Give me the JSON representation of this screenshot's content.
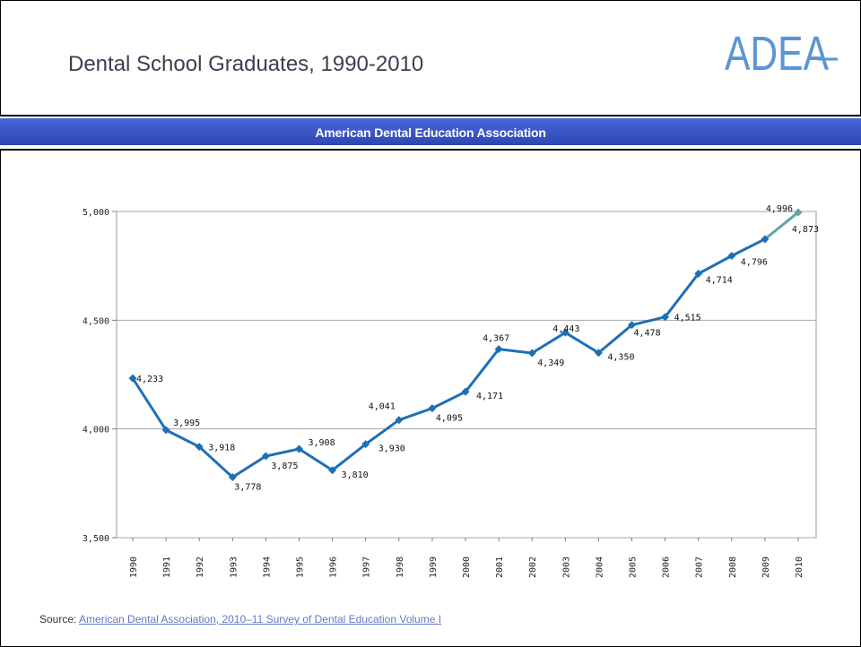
{
  "header": {
    "title": "Dental School Graduates, 1990-2010",
    "logo_text": "ADEA",
    "banner": "American Dental Education Association"
  },
  "footer": {
    "source_label": "Source: ",
    "source_link": "American Dental Association, 2010–11 Survey of Dental Education Volume I"
  },
  "colors": {
    "line": "#1f6fb4",
    "marker": "#1f6fb4",
    "last_segment": "#5fa5a0",
    "logo": "#5b95d3"
  },
  "chart_data": {
    "type": "line",
    "title": "",
    "xlabel": "",
    "ylabel": "",
    "ylim": [
      3500,
      5000
    ],
    "yticks": [
      3500,
      4000,
      4500,
      5000
    ],
    "ytick_labels": [
      "3,500",
      "4,000",
      "4,500",
      "5,000"
    ],
    "grid": true,
    "legend": "none",
    "categories": [
      "1990",
      "1991",
      "1992",
      "1993",
      "1994",
      "1995",
      "1996",
      "1997",
      "1998",
      "1999",
      "2000",
      "2001",
      "2002",
      "2003",
      "2004",
      "2005",
      "2006",
      "2007",
      "2008",
      "2009",
      "2010"
    ],
    "values": [
      4233,
      3995,
      3918,
      3778,
      3875,
      3908,
      3810,
      3930,
      4041,
      4095,
      4171,
      4367,
      4349,
      4443,
      4350,
      4478,
      4515,
      4714,
      4796,
      4873,
      4996
    ],
    "data_labels": [
      "4,233",
      "3,995",
      "3,918",
      "3,778",
      "3,875",
      "3,908",
      "3,810",
      "3,930",
      "4,041",
      "4,095",
      "4,171",
      "4,367",
      "4,349",
      "4,443",
      "4,350",
      "4,478",
      "4,515",
      "4,714",
      "4,796",
      "4,873",
      "4,996"
    ]
  }
}
